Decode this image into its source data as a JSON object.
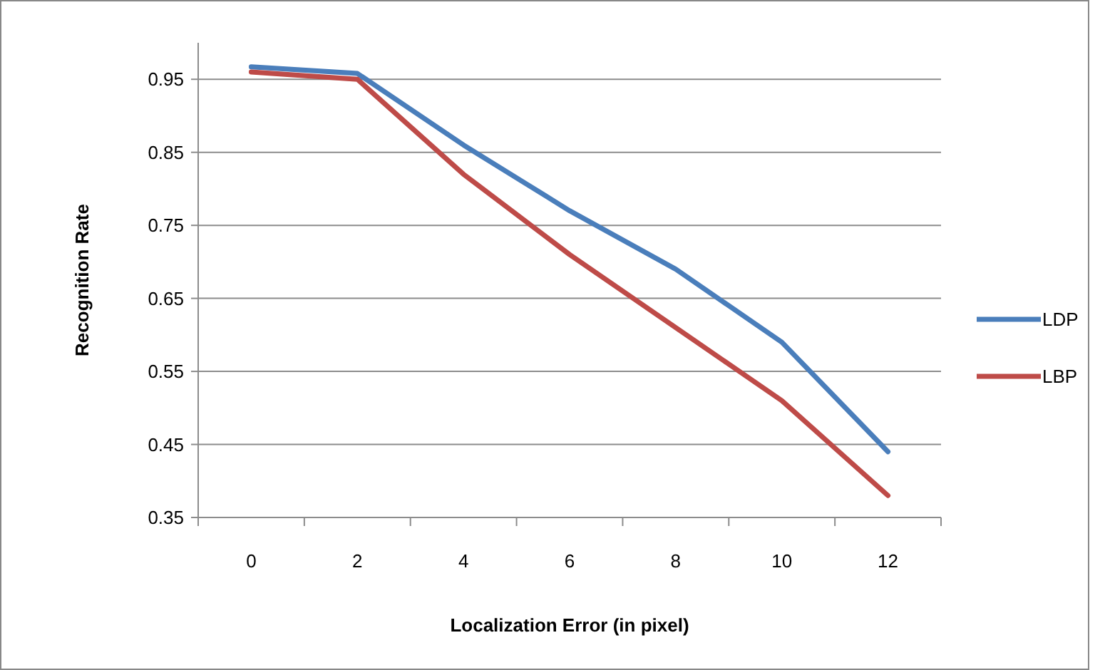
{
  "chart_data": {
    "type": "line",
    "xlabel": "Localization  Error (in pixel)",
    "ylabel": "Recognition Rate",
    "categories": [
      "0",
      "2",
      "4",
      "6",
      "8",
      "10",
      "12"
    ],
    "series": [
      {
        "name": "LDP",
        "color": "#4a7ebb",
        "values": [
          0.967,
          0.958,
          0.86,
          0.77,
          0.69,
          0.59,
          0.44
        ]
      },
      {
        "name": "LBP",
        "color": "#be4b48",
        "values": [
          0.96,
          0.95,
          0.82,
          0.71,
          0.61,
          0.51,
          0.38
        ]
      }
    ],
    "ylim": [
      0.35,
      1.0
    ],
    "yticks": [
      0.35,
      0.45,
      0.55,
      0.65,
      0.75,
      0.85,
      0.95
    ],
    "grid": "y",
    "legend": "right",
    "marker": "none",
    "line_style": "solid"
  }
}
